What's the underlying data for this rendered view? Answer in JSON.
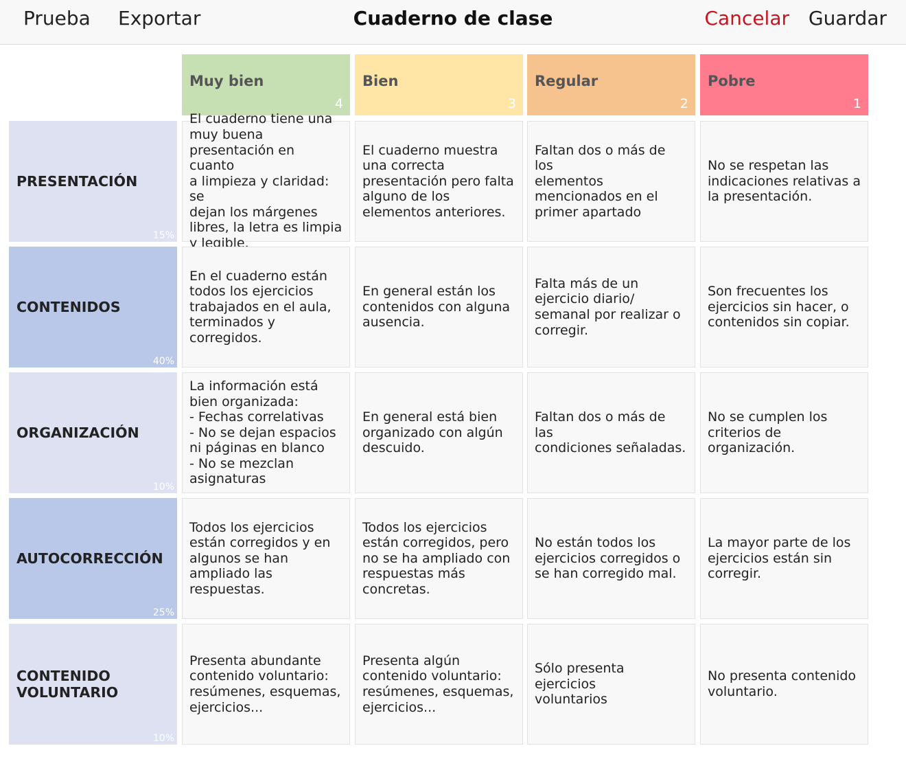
{
  "toolbar": {
    "test_label": "Prueba",
    "export_label": "Exportar",
    "title": "Cuaderno de clase",
    "cancel_label": "Cancelar",
    "save_label": "Guardar"
  },
  "colors": {
    "cancel": "#c8141e",
    "criterion_light": "#dde1f2",
    "criterion_dark": "#b9c8e8"
  },
  "levels": [
    {
      "name": "Muy bien",
      "points": "4",
      "color": "#c6e0b4"
    },
    {
      "name": "Bien",
      "points": "3",
      "color": "#ffe6a6"
    },
    {
      "name": "Regular",
      "points": "2",
      "color": "#f6c38e"
    },
    {
      "name": "Pobre",
      "points": "1",
      "color": "#ff7b8e"
    }
  ],
  "criteria": [
    {
      "name": "PRESENTACIÓN",
      "weight": "15%",
      "descriptors": [
        "El cuaderno tiene una\nmuy buena\npresentación en cuanto\na limpieza y claridad: se\ndejan los márgenes\nlibres, la letra es limpia\ny legible.",
        "El cuaderno muestra\nuna correcta\npresentación pero falta\nalguno de los\nelementos anteriores.",
        "Faltan dos o más de los\nelementos\nmencionados en el\nprimer apartado",
        "No se respetan las\nindicaciones relativas a\nla presentación."
      ]
    },
    {
      "name": "CONTENIDOS",
      "weight": "40%",
      "descriptors": [
        "En el cuaderno están\ntodos los ejercicios\ntrabajados en el aula,\nterminados y\ncorregidos.",
        "En general están los\ncontenidos con alguna\nausencia.",
        "Falta más de un\nejercicio diario/\nsemanal por realizar o\ncorregir.",
        "Son frecuentes los\nejercicios sin hacer, o\ncontenidos sin copiar."
      ]
    },
    {
      "name": "ORGANIZACIÓN",
      "weight": "10%",
      "descriptors": [
        "La información está\nbien organizada:\n- Fechas correlativas\n- No se dejan espacios\nni páginas en blanco\n- No se mezclan\nasignaturas",
        "En general está bien\norganizado con algún\ndescuido.",
        "Faltan dos o más de las\ncondiciones señaladas.",
        "No se cumplen los\ncriterios de\norganización."
      ]
    },
    {
      "name": "AUTOCORRECCIÓN",
      "weight": "25%",
      "descriptors": [
        "Todos los ejercicios\nestán corregidos y en\nalgunos se han\nampliado las\nrespuestas.",
        "Todos los ejercicios\nestán corregidos, pero\nno se ha ampliado con\nrespuestas más\nconcretas.",
        "No están todos los\nejercicios corregidos o\nse han corregido mal.",
        "La mayor parte de los\nejercicios están sin\ncorregir."
      ]
    },
    {
      "name": "CONTENIDO\nVOLUNTARIO",
      "weight": "10%",
      "descriptors": [
        "Presenta abundante\ncontenido voluntario:\nresúmenes, esquemas,\nejercicios...",
        "Presenta algún\ncontenido voluntario:\nresúmenes, esquemas,\nejercicios...",
        "Sólo presenta ejercicios\nvoluntarios",
        "No presenta contenido\nvoluntario."
      ]
    }
  ]
}
